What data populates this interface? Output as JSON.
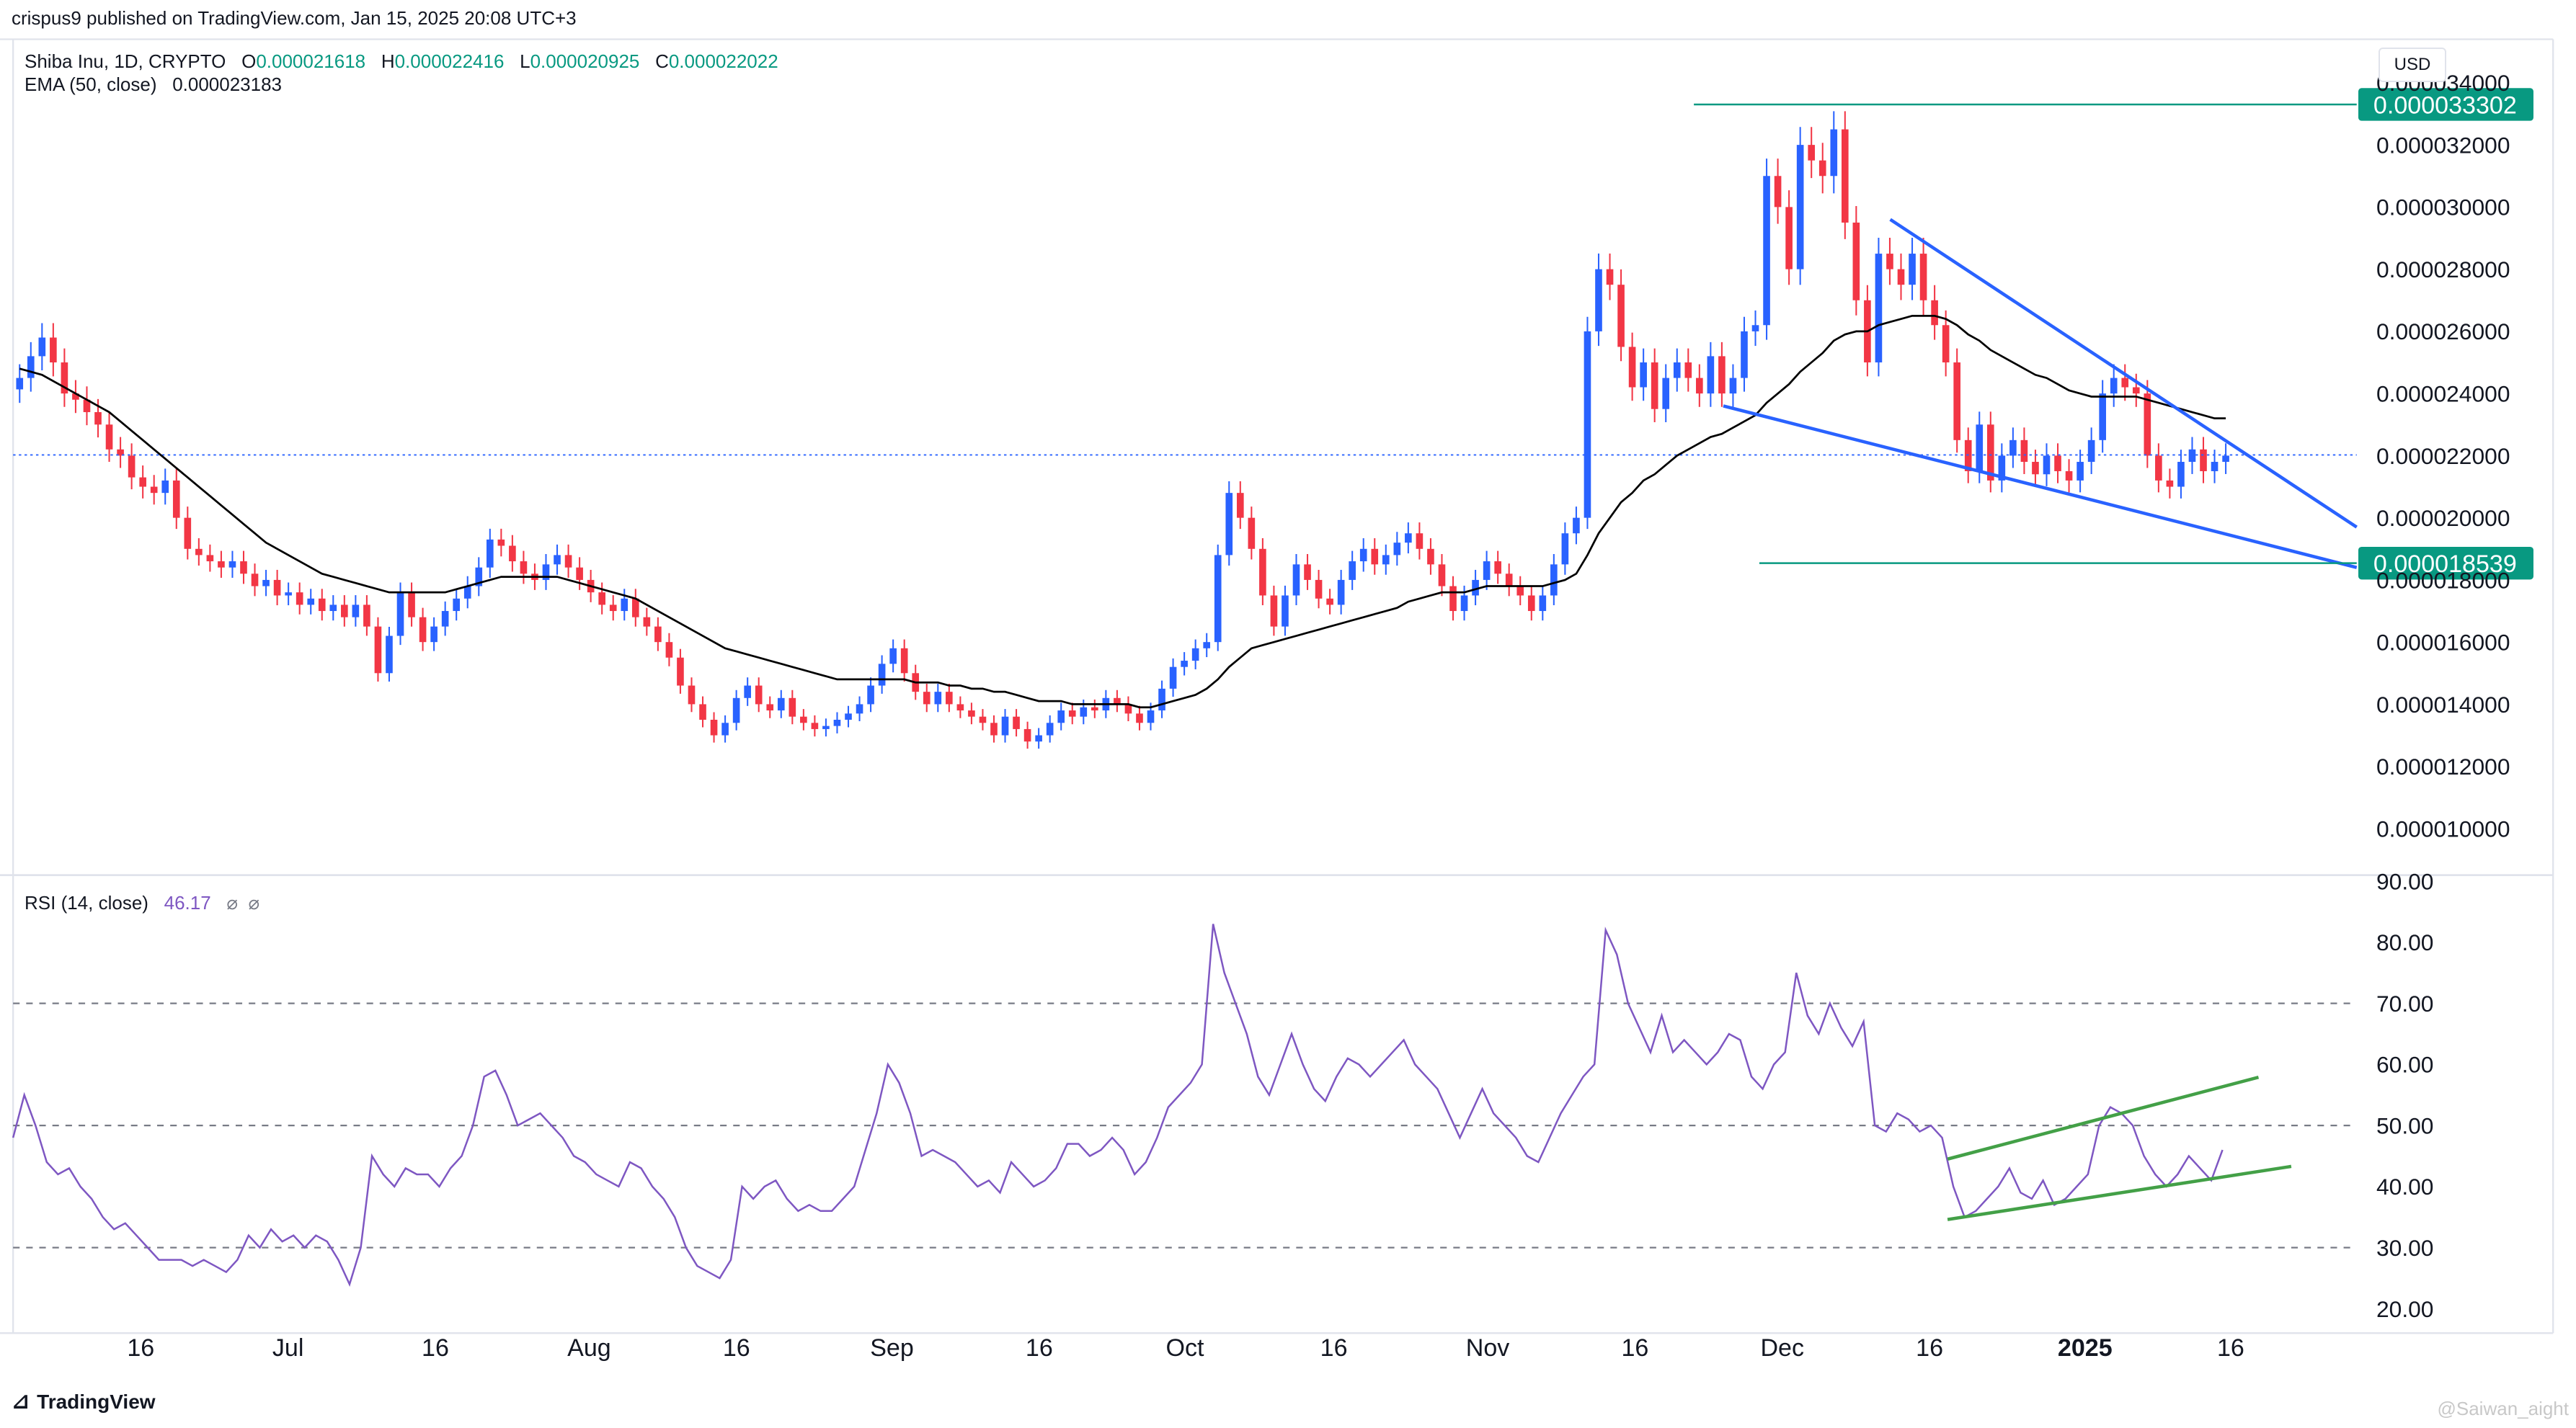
{
  "header": {
    "published": "crispus9 published on TradingView.com, Jan 15, 2025 20:08 UTC+3"
  },
  "legend": {
    "symbol": "Shiba Inu, 1D, CRYPTO",
    "o_label": "O",
    "o_value": "0.000021618",
    "h_label": "H",
    "h_value": "0.000022416",
    "l_label": "L",
    "l_value": "0.000020925",
    "c_label": "C",
    "c_value": "0.000022022",
    "ema_label": "EMA (50, close)",
    "ema_value": "0.000023183",
    "rsi_label": "RSI (14, close)",
    "rsi_value": "46.17"
  },
  "currency": "USD",
  "footer": {
    "brand": "TradingView"
  },
  "watermark": "@Saiwan_aight",
  "colors": {
    "up": "#2962ff",
    "down": "#f23645",
    "ema": "#000000",
    "rsi": "#7e57c2",
    "level": "#089981",
    "trend": "#2962ff",
    "rsi_trend": "#43a047"
  },
  "chart_data": [
    {
      "type": "candlestick",
      "y_ticks": [
        "0.000010000",
        "0.000012000",
        "0.000014000",
        "0.000016000",
        "0.000018000",
        "0.000020000",
        "0.000022000",
        "0.000024000",
        "0.000026000",
        "0.000028000",
        "0.000030000",
        "0.000032000",
        "0.000034000"
      ],
      "x_ticks": [
        "16",
        "Jul",
        "16",
        "Aug",
        "16",
        "Sep",
        "16",
        "Oct",
        "16",
        "Nov",
        "16",
        "Dec",
        "16",
        "2025",
        "16"
      ],
      "ylim": [
        8.5e-06,
        3.54e-05
      ],
      "current_price_line": 2.2022e-05,
      "levels": [
        {
          "label": "0.000033302",
          "value": 3.3302e-05
        },
        {
          "label": "0.000018539",
          "value": 1.8539e-05
        }
      ],
      "close": [
        2.45e-05,
        2.52e-05,
        2.58e-05,
        2.5e-05,
        2.4e-05,
        2.38e-05,
        2.34e-05,
        2.3e-05,
        2.22e-05,
        2.2e-05,
        2.13e-05,
        2.1e-05,
        2.08e-05,
        2.12e-05,
        2e-05,
        1.9e-05,
        1.88e-05,
        1.86e-05,
        1.84e-05,
        1.86e-05,
        1.82e-05,
        1.78e-05,
        1.8e-05,
        1.75e-05,
        1.76e-05,
        1.72e-05,
        1.74e-05,
        1.7e-05,
        1.72e-05,
        1.68e-05,
        1.72e-05,
        1.65e-05,
        1.5e-05,
        1.62e-05,
        1.76e-05,
        1.68e-05,
        1.6e-05,
        1.65e-05,
        1.7e-05,
        1.74e-05,
        1.78e-05,
        1.84e-05,
        1.93e-05,
        1.91e-05,
        1.86e-05,
        1.82e-05,
        1.8e-05,
        1.85e-05,
        1.88e-05,
        1.84e-05,
        1.8e-05,
        1.76e-05,
        1.72e-05,
        1.7e-05,
        1.74e-05,
        1.68e-05,
        1.65e-05,
        1.6e-05,
        1.55e-05,
        1.46e-05,
        1.4e-05,
        1.35e-05,
        1.3e-05,
        1.34e-05,
        1.42e-05,
        1.46e-05,
        1.4e-05,
        1.38e-05,
        1.42e-05,
        1.36e-05,
        1.34e-05,
        1.32e-05,
        1.33e-05,
        1.35e-05,
        1.37e-05,
        1.4e-05,
        1.46e-05,
        1.53e-05,
        1.58e-05,
        1.5e-05,
        1.44e-05,
        1.4e-05,
        1.44e-05,
        1.4e-05,
        1.38e-05,
        1.36e-05,
        1.34e-05,
        1.3e-05,
        1.36e-05,
        1.32e-05,
        1.28e-05,
        1.3e-05,
        1.34e-05,
        1.38e-05,
        1.36e-05,
        1.39e-05,
        1.38e-05,
        1.42e-05,
        1.4e-05,
        1.37e-05,
        1.34e-05,
        1.38e-05,
        1.45e-05,
        1.52e-05,
        1.54e-05,
        1.58e-05,
        1.6e-05,
        1.88e-05,
        2.08e-05,
        2e-05,
        1.9e-05,
        1.75e-05,
        1.65e-05,
        1.75e-05,
        1.85e-05,
        1.8e-05,
        1.74e-05,
        1.72e-05,
        1.8e-05,
        1.86e-05,
        1.9e-05,
        1.85e-05,
        1.88e-05,
        1.92e-05,
        1.95e-05,
        1.9e-05,
        1.85e-05,
        1.78e-05,
        1.7e-05,
        1.75e-05,
        1.8e-05,
        1.86e-05,
        1.82e-05,
        1.78e-05,
        1.75e-05,
        1.7e-05,
        1.75e-05,
        1.85e-05,
        1.95e-05,
        2e-05,
        2.6e-05,
        2.8e-05,
        2.75e-05,
        2.55e-05,
        2.42e-05,
        2.5e-05,
        2.35e-05,
        2.45e-05,
        2.5e-05,
        2.45e-05,
        2.4e-05,
        2.52e-05,
        2.4e-05,
        2.45e-05,
        2.6e-05,
        2.62e-05,
        3.1e-05,
        3e-05,
        2.8e-05,
        3.2e-05,
        3.15e-05,
        3.1e-05,
        3.25e-05,
        2.95e-05,
        2.7e-05,
        2.5e-05,
        2.85e-05,
        2.8e-05,
        2.75e-05,
        2.85e-05,
        2.7e-05,
        2.62e-05,
        2.5e-05,
        2.25e-05,
        2.15e-05,
        2.3e-05,
        2.12e-05,
        2.2e-05,
        2.25e-05,
        2.18e-05,
        2.14e-05,
        2.2e-05,
        2.15e-05,
        2.12e-05,
        2.18e-05,
        2.25e-05,
        2.4e-05,
        2.45e-05,
        2.42e-05,
        2.4e-05,
        2.2e-05,
        2.12e-05,
        2.1e-05,
        2.18e-05,
        2.22e-05,
        2.15e-05,
        2.18e-05,
        2.2e-05
      ],
      "ema50": [
        2.48e-05,
        2.47e-05,
        2.46e-05,
        2.44e-05,
        2.42e-05,
        2.4e-05,
        2.38e-05,
        2.36e-05,
        2.34e-05,
        2.31e-05,
        2.28e-05,
        2.25e-05,
        2.22e-05,
        2.19e-05,
        2.16e-05,
        2.13e-05,
        2.1e-05,
        2.07e-05,
        2.04e-05,
        2.01e-05,
        1.98e-05,
        1.95e-05,
        1.92e-05,
        1.9e-05,
        1.88e-05,
        1.86e-05,
        1.84e-05,
        1.82e-05,
        1.81e-05,
        1.8e-05,
        1.79e-05,
        1.78e-05,
        1.77e-05,
        1.76e-05,
        1.76e-05,
        1.76e-05,
        1.76e-05,
        1.76e-05,
        1.76e-05,
        1.77e-05,
        1.78e-05,
        1.79e-05,
        1.8e-05,
        1.81e-05,
        1.81e-05,
        1.81e-05,
        1.81e-05,
        1.81e-05,
        1.81e-05,
        1.8e-05,
        1.79e-05,
        1.78e-05,
        1.77e-05,
        1.76e-05,
        1.75e-05,
        1.74e-05,
        1.72e-05,
        1.7e-05,
        1.68e-05,
        1.66e-05,
        1.64e-05,
        1.62e-05,
        1.6e-05,
        1.58e-05,
        1.57e-05,
        1.56e-05,
        1.55e-05,
        1.54e-05,
        1.53e-05,
        1.52e-05,
        1.51e-05,
        1.5e-05,
        1.49e-05,
        1.48e-05,
        1.48e-05,
        1.48e-05,
        1.48e-05,
        1.48e-05,
        1.48e-05,
        1.48e-05,
        1.47e-05,
        1.47e-05,
        1.47e-05,
        1.46e-05,
        1.46e-05,
        1.45e-05,
        1.45e-05,
        1.44e-05,
        1.44e-05,
        1.43e-05,
        1.42e-05,
        1.41e-05,
        1.41e-05,
        1.41e-05,
        1.4e-05,
        1.4e-05,
        1.4e-05,
        1.4e-05,
        1.4e-05,
        1.4e-05,
        1.39e-05,
        1.39e-05,
        1.4e-05,
        1.41e-05,
        1.42e-05,
        1.43e-05,
        1.45e-05,
        1.48e-05,
        1.52e-05,
        1.55e-05,
        1.58e-05,
        1.59e-05,
        1.6e-05,
        1.61e-05,
        1.62e-05,
        1.63e-05,
        1.64e-05,
        1.65e-05,
        1.66e-05,
        1.67e-05,
        1.68e-05,
        1.69e-05,
        1.7e-05,
        1.71e-05,
        1.73e-05,
        1.74e-05,
        1.75e-05,
        1.76e-05,
        1.76e-05,
        1.76e-05,
        1.77e-05,
        1.78e-05,
        1.78e-05,
        1.78e-05,
        1.78e-05,
        1.78e-05,
        1.78e-05,
        1.79e-05,
        1.8e-05,
        1.82e-05,
        1.88e-05,
        1.95e-05,
        2e-05,
        2.05e-05,
        2.08e-05,
        2.12e-05,
        2.14e-05,
        2.17e-05,
        2.2e-05,
        2.22e-05,
        2.24e-05,
        2.26e-05,
        2.27e-05,
        2.29e-05,
        2.31e-05,
        2.33e-05,
        2.37e-05,
        2.4e-05,
        2.43e-05,
        2.47e-05,
        2.5e-05,
        2.53e-05,
        2.57e-05,
        2.59e-05,
        2.6e-05,
        2.6e-05,
        2.62e-05,
        2.63e-05,
        2.64e-05,
        2.65e-05,
        2.65e-05,
        2.65e-05,
        2.64e-05,
        2.62e-05,
        2.59e-05,
        2.57e-05,
        2.54e-05,
        2.52e-05,
        2.5e-05,
        2.48e-05,
        2.46e-05,
        2.45e-05,
        2.43e-05,
        2.41e-05,
        2.4e-05,
        2.39e-05,
        2.39e-05,
        2.39e-05,
        2.39e-05,
        2.39e-05,
        2.38e-05,
        2.37e-05,
        2.36e-05,
        2.35e-05,
        2.34e-05,
        2.33e-05,
        2.32e-05,
        2.32e-05
      ],
      "trendlines": [
        {
          "from": [
            1155,
            2.96e-05
          ],
          "to": [
            1440,
            1.97e-05
          ]
        },
        {
          "from": [
            1053,
            2.36e-05
          ],
          "to": [
            1440,
            1.84e-05
          ]
        }
      ]
    },
    {
      "type": "line",
      "y_ticks": [
        "20.00",
        "30.00",
        "40.00",
        "50.00",
        "60.00",
        "70.00",
        "80.00",
        "90.00"
      ],
      "ylim": [
        16,
        91
      ],
      "bands": [
        30,
        50,
        70
      ],
      "values": [
        48,
        55,
        50,
        44,
        42,
        43,
        40,
        38,
        35,
        33,
        34,
        32,
        30,
        28,
        28,
        28,
        27,
        28,
        27,
        26,
        28,
        32,
        30,
        33,
        31,
        32,
        30,
        32,
        31,
        28,
        24,
        30,
        45,
        42,
        40,
        43,
        42,
        42,
        40,
        43,
        45,
        50,
        58,
        59,
        55,
        50,
        51,
        52,
        50,
        48,
        45,
        44,
        42,
        41,
        40,
        44,
        43,
        40,
        38,
        35,
        30,
        27,
        26,
        25,
        28,
        40,
        38,
        40,
        41,
        38,
        36,
        37,
        36,
        36,
        38,
        40,
        46,
        52,
        60,
        57,
        52,
        45,
        46,
        45,
        44,
        42,
        40,
        41,
        39,
        44,
        42,
        40,
        41,
        43,
        47,
        47,
        45,
        46,
        48,
        46,
        42,
        44,
        48,
        53,
        55,
        57,
        60,
        83,
        75,
        70,
        65,
        58,
        55,
        60,
        65,
        60,
        56,
        54,
        58,
        61,
        60,
        58,
        60,
        62,
        64,
        60,
        58,
        56,
        52,
        48,
        52,
        56,
        52,
        50,
        48,
        45,
        44,
        48,
        52,
        55,
        58,
        60,
        82,
        78,
        70,
        66,
        62,
        68,
        62,
        64,
        62,
        60,
        62,
        65,
        64,
        58,
        56,
        60,
        62,
        75,
        68,
        65,
        70,
        66,
        63,
        67,
        50,
        49,
        52,
        51,
        49,
        50,
        48,
        40,
        35,
        36,
        38,
        40,
        43,
        39,
        38,
        41,
        37,
        38,
        40,
        42,
        50,
        53,
        52,
        50,
        45,
        42,
        40,
        42,
        45,
        43,
        41,
        46
      ],
      "trendlines": [
        {
          "from": [
            1190,
            44.5
          ],
          "to": [
            1380,
            57.9
          ]
        },
        {
          "from": [
            1190,
            34.6
          ],
          "to": [
            1400,
            43.3
          ]
        }
      ]
    }
  ]
}
